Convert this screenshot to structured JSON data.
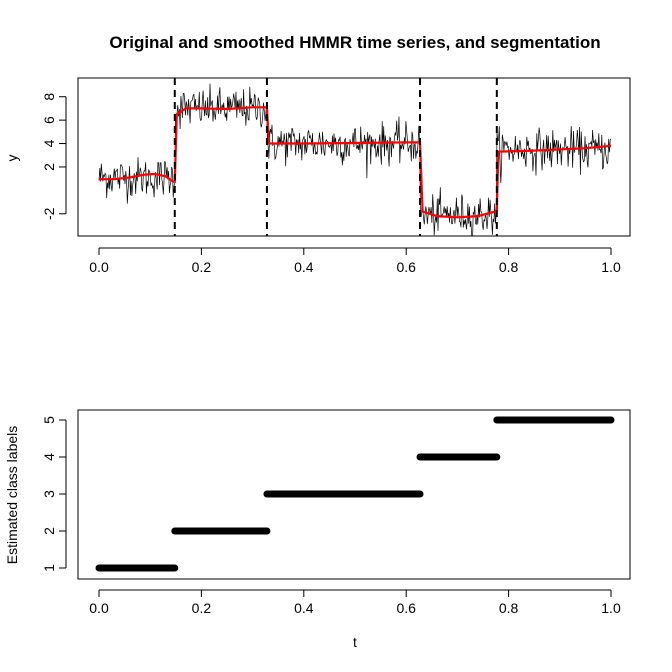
{
  "chart_data": [
    {
      "type": "line",
      "title": "Original and smoothed HMMR time series, and segmentation",
      "xlabel": "",
      "ylabel": "y",
      "xlim": [
        0,
        1
      ],
      "ylim": [
        -3.9,
        9.6
      ],
      "x_ticks": [
        "0.0",
        "0.2",
        "0.4",
        "0.6",
        "0.8",
        "1.0"
      ],
      "y_ticks": [
        "-2",
        "2",
        "4",
        "6",
        "8"
      ],
      "x_tick_values": [
        0,
        0.2,
        0.4,
        0.6,
        0.8,
        1.0
      ],
      "y_tick_values": [
        -2,
        2,
        4,
        6,
        8
      ],
      "changepoints": [
        0.148,
        0.328,
        0.627,
        0.777
      ],
      "segments": [
        {
          "start": 0.0,
          "end": 0.148,
          "mean": 1.1,
          "noise": 0.85
        },
        {
          "start": 0.148,
          "end": 0.328,
          "mean": 7.0,
          "noise": 0.85
        },
        {
          "start": 0.328,
          "end": 0.627,
          "mean": 4.0,
          "noise": 0.85
        },
        {
          "start": 0.627,
          "end": 0.777,
          "mean": -2.1,
          "noise": 0.85
        },
        {
          "start": 0.777,
          "end": 1.0,
          "mean": 3.5,
          "noise": 0.85
        }
      ],
      "smoothed_curve": {
        "x": [
          0.0,
          0.03,
          0.06,
          0.09,
          0.11,
          0.13,
          0.145,
          0.148,
          0.152,
          0.17,
          0.2,
          0.25,
          0.3,
          0.325,
          0.328,
          0.332,
          0.4,
          0.5,
          0.6,
          0.625,
          0.627,
          0.632,
          0.66,
          0.7,
          0.74,
          0.775,
          0.777,
          0.78,
          0.85,
          0.95,
          1.0
        ],
        "y": [
          0.95,
          0.95,
          1.1,
          1.35,
          1.4,
          1.2,
          0.75,
          0.75,
          6.5,
          7.0,
          7.0,
          6.95,
          7.1,
          7.1,
          7.1,
          4.0,
          4.0,
          4.05,
          4.1,
          4.1,
          4.1,
          -1.8,
          -2.2,
          -2.3,
          -2.2,
          -1.8,
          -1.8,
          3.3,
          3.4,
          3.6,
          3.8
        ]
      },
      "series": [
        {
          "name": "",
          "color": "#000000",
          "kind": "raw-noisy"
        },
        {
          "name": "",
          "color": "#ff0000",
          "kind": "smoothed"
        }
      ],
      "changepoint_color": "#000000",
      "grid": false
    },
    {
      "type": "scatter",
      "title": "",
      "xlabel": "t",
      "ylabel": "Estimated class labels",
      "xlim": [
        0,
        1
      ],
      "ylim": [
        1,
        5
      ],
      "x_ticks": [
        "0.0",
        "0.2",
        "0.4",
        "0.6",
        "0.8",
        "1.0"
      ],
      "y_ticks": [
        "1",
        "2",
        "3",
        "4",
        "5"
      ],
      "x_tick_values": [
        0,
        0.2,
        0.4,
        0.6,
        0.8,
        1.0
      ],
      "y_tick_values": [
        1,
        2,
        3,
        4,
        5
      ],
      "segments": [
        {
          "start": 0.0,
          "end": 0.148,
          "label": 1
        },
        {
          "start": 0.148,
          "end": 0.328,
          "label": 2
        },
        {
          "start": 0.328,
          "end": 0.627,
          "label": 3
        },
        {
          "start": 0.627,
          "end": 0.777,
          "label": 4
        },
        {
          "start": 0.777,
          "end": 1.0,
          "label": 5
        }
      ],
      "color": "#000000",
      "grid": false
    }
  ]
}
